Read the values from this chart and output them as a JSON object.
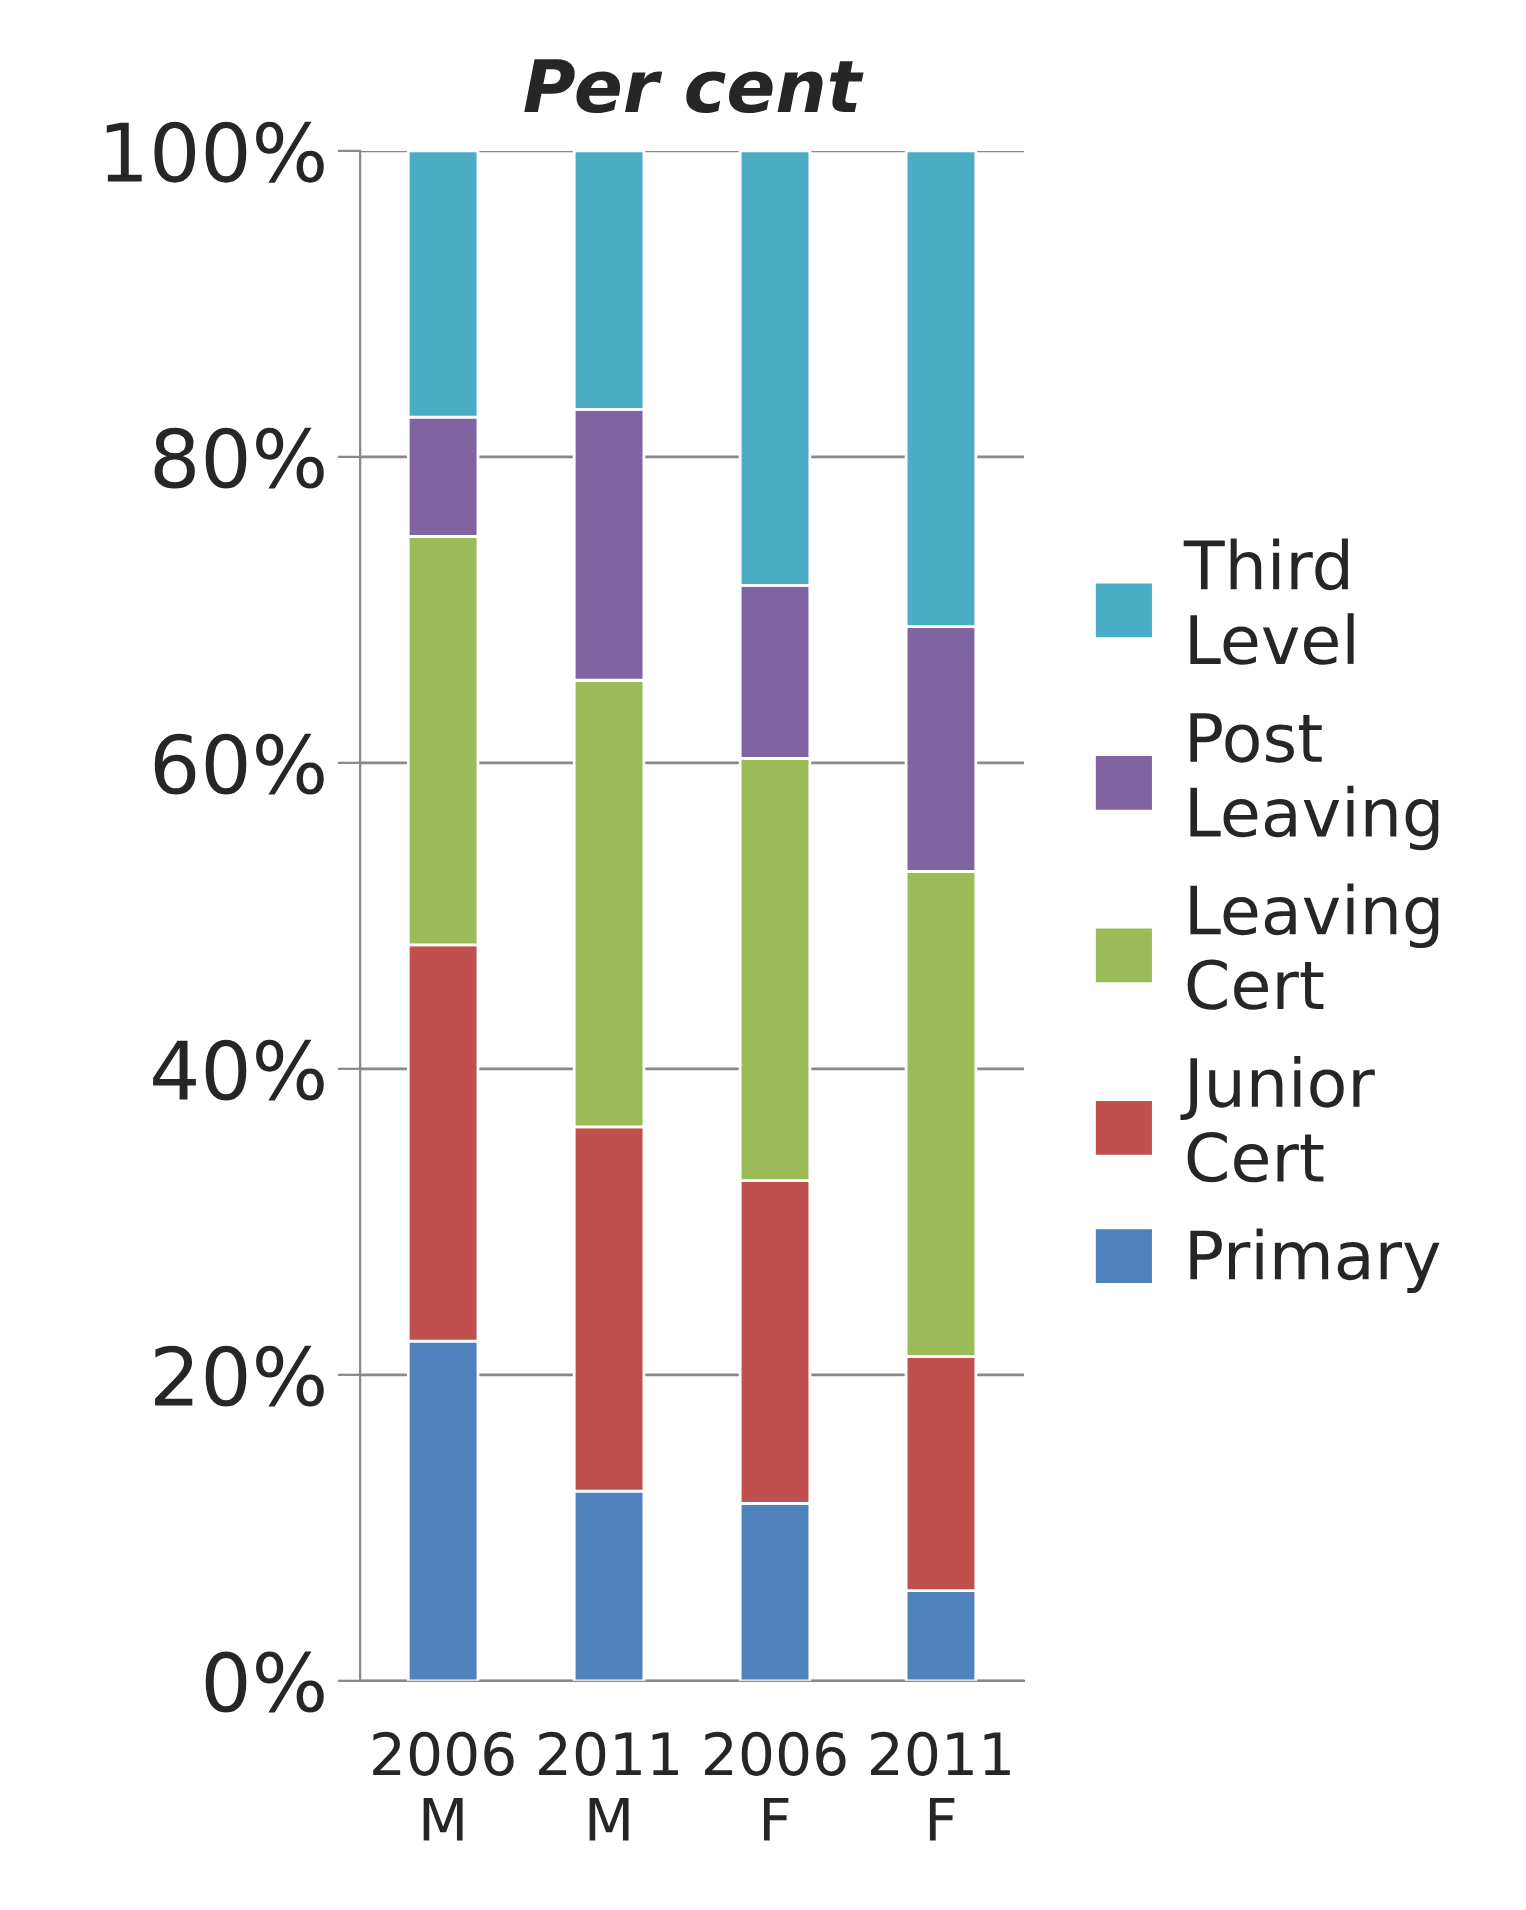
{
  "chart_data": {
    "type": "bar",
    "title": "Per cent",
    "stacked": true,
    "categories": [
      "2006\nM",
      "2011\nM",
      "2006\nF",
      "2011\nF"
    ],
    "series": [
      {
        "name": "Primary",
        "color": "#4f81bd",
        "values": [
          22.2,
          12.4,
          11.6,
          5.9
        ]
      },
      {
        "name": "Junior\nCert",
        "color": "#c0504d",
        "values": [
          25.9,
          23.8,
          21.1,
          15.3
        ]
      },
      {
        "name": "Leaving\nCert",
        "color": "#9bbb59",
        "values": [
          26.7,
          29.2,
          27.6,
          31.7
        ]
      },
      {
        "name": "Post\nLeaving",
        "color": "#8064a2",
        "values": [
          7.8,
          17.7,
          11.3,
          16.0
        ]
      },
      {
        "name": "Third\nLevel",
        "color": "#4bacc6",
        "values": [
          17.4,
          16.9,
          28.4,
          31.1
        ]
      }
    ],
    "ylim": [
      0,
      100
    ],
    "yticks": [
      {
        "value": 0,
        "label": "0%"
      },
      {
        "value": 20,
        "label": "20%"
      },
      {
        "value": 40,
        "label": "40%"
      },
      {
        "value": 60,
        "label": "60%"
      },
      {
        "value": 80,
        "label": "80%"
      },
      {
        "value": 100,
        "label": "100%"
      }
    ],
    "grid": "y",
    "legend": "right"
  }
}
